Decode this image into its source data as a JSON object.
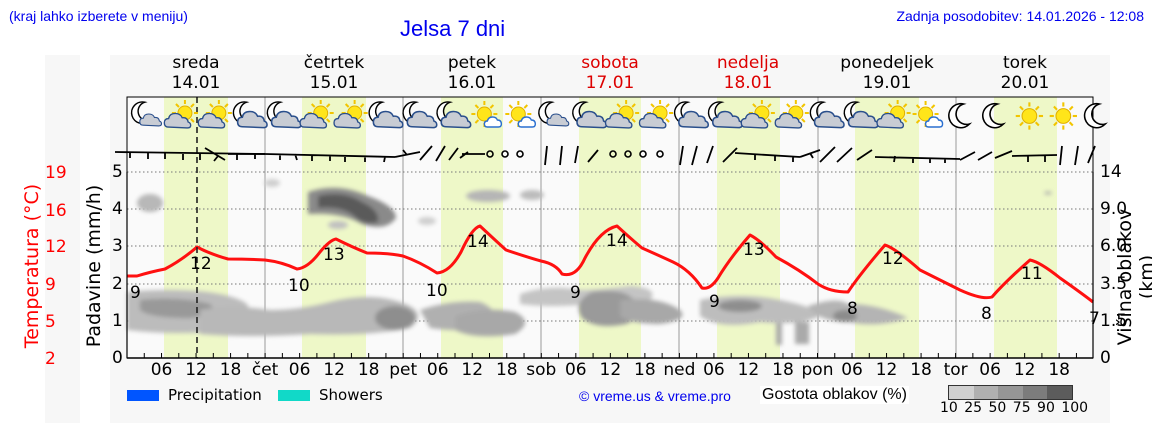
{
  "header": {
    "hint": "(kraj lahko izberete v meniju)",
    "title": "Jelsa 7 dni",
    "updated": "Zadnja posodobitev: 14.01.2026 - 12:08"
  },
  "days": [
    {
      "name": "sreda",
      "date": "14.01",
      "weekend": false
    },
    {
      "name": "četrtek",
      "date": "15.01",
      "weekend": false
    },
    {
      "name": "petek",
      "date": "16.01",
      "weekend": false
    },
    {
      "name": "sobota",
      "date": "17.01",
      "weekend": true
    },
    {
      "name": "nedelja",
      "date": "18.01",
      "weekend": true
    },
    {
      "name": "ponedeljek",
      "date": "19.01",
      "weekend": false
    },
    {
      "name": "torek",
      "date": "20.01",
      "weekend": false
    }
  ],
  "axes": {
    "temp_label": "Temperatura (°C)",
    "temp_ticks": [
      "19",
      "16",
      "12",
      "9",
      "5",
      "2"
    ],
    "precip_label": "Padavine (mm/h)",
    "precip_ticks": [
      "5",
      "4",
      "3",
      "2",
      "1",
      "0"
    ],
    "cloud_label": "Višina oblakov (km)",
    "cloud_ticks": [
      "14",
      "9.0",
      "6.0",
      "3.5",
      "1.5",
      "0"
    ],
    "x_ticks": [
      "06",
      "12",
      "18",
      "čet",
      "06",
      "12",
      "18",
      "pet",
      "06",
      "12",
      "18",
      "sob",
      "06",
      "12",
      "18",
      "ned",
      "06",
      "12",
      "18",
      "pon",
      "06",
      "12",
      "18",
      "tor",
      "06",
      "12",
      "18"
    ]
  },
  "legend": {
    "precipitation": "Precipitation",
    "precipitation_color": "#0055ff",
    "showers": "Showers",
    "showers_color": "#11d9c8",
    "copyright": "© vreme.us & vreme.pro",
    "cloud_density_label": "Gostota oblakov (%)",
    "cloud_density_scale": [
      "10",
      "25",
      "50",
      "75",
      "90",
      "100"
    ],
    "cloud_density_colors": [
      "#d0d0d0",
      "#b0b0b0",
      "#969696",
      "#7c7c7c",
      "#646464",
      "#4c4c4c"
    ]
  },
  "colors": {
    "temperature_line": "#ff0000",
    "daylight_band": "#eef8c8",
    "panel_bg": "#f7f7f7"
  },
  "icons": [
    "night-partly-cloudy",
    "day-partly-sunny",
    "day-partly-sunny",
    "night-cloudy",
    "night-cloudy",
    "day-partly-sunny",
    "day-partly-sunny",
    "night-cloudy",
    "night-cloudy",
    "night-cloudy",
    "day-sunny-small-cloud",
    "day-sunny-small-cloud",
    "night-partly-cloudy",
    "night-cloudy",
    "day-partly-sunny",
    "day-partly-sunny",
    "night-cloudy",
    "night-cloudy",
    "day-partly-sunny",
    "day-partly-sunny",
    "night-cloudy",
    "night-cloudy",
    "day-partly-sunny",
    "day-sunny-small-cloud",
    "night-clear",
    "night-clear",
    "day-sunny",
    "day-sunny",
    "night-clear"
  ],
  "chart_data": {
    "type": "line",
    "title": "Jelsa 7 dni",
    "xlabel": "",
    "ylabel": "Temperatura (°C)",
    "x": [
      "14.01 00",
      "14.01 06",
      "14.01 12",
      "14.01 18",
      "15.01 00",
      "15.01 06",
      "15.01 12",
      "15.01 18",
      "16.01 00",
      "16.01 06",
      "16.01 12",
      "16.01 18",
      "17.01 00",
      "17.01 06",
      "17.01 12",
      "17.01 18",
      "18.01 00",
      "18.01 06",
      "18.01 12",
      "18.01 18",
      "19.01 00",
      "19.01 06",
      "19.01 12",
      "19.01 18",
      "20.01 00",
      "20.01 06",
      "20.01 12",
      "20.01 18",
      "21.01 00"
    ],
    "series": [
      {
        "name": "Temperatura (°C)",
        "values": [
          10.5,
          11,
          12.2,
          11.6,
          11.6,
          10.9,
          13,
          12.4,
          12.2,
          11,
          14,
          12.7,
          12.2,
          11.2,
          14,
          12.7,
          11.6,
          10,
          13.3,
          11.8,
          10.3,
          9.6,
          12.5,
          10.9,
          10.1,
          9.3,
          11.5,
          10.2,
          9
        ]
      },
      {
        "name": "Daily extremes labels",
        "labels": [
          {
            "day": "14.01",
            "min": 9,
            "max": 12
          },
          {
            "day": "15.01",
            "min": 10,
            "max": 13
          },
          {
            "day": "16.01",
            "min": 10,
            "max": 14
          },
          {
            "day": "17.01",
            "min": 9,
            "max": 14
          },
          {
            "day": "18.01",
            "min": 9,
            "max": 13
          },
          {
            "day": "19.01",
            "min": 8,
            "max": 12
          },
          {
            "day": "20.01",
            "min": 8,
            "max": 11
          },
          {
            "day": "21.01",
            "min": 7
          }
        ]
      }
    ],
    "secondary_axes": {
      "precipitation_mm_h": {
        "range": [
          0,
          5
        ],
        "ticks": [
          0,
          1,
          2,
          3,
          4,
          5
        ]
      },
      "cloud_height_km": {
        "ticks": [
          0,
          1.5,
          3.5,
          6.0,
          9.0,
          14
        ]
      }
    },
    "precipitation_values": "none visible (0 mm/h throughout)",
    "cloud_layers": "low cloud 0.5–2 km most days; high cloud 9–14 km on 14.01 night and 15.01",
    "current_time_marker": "14.01 12:00",
    "grid": true,
    "legend_position": "bottom"
  }
}
